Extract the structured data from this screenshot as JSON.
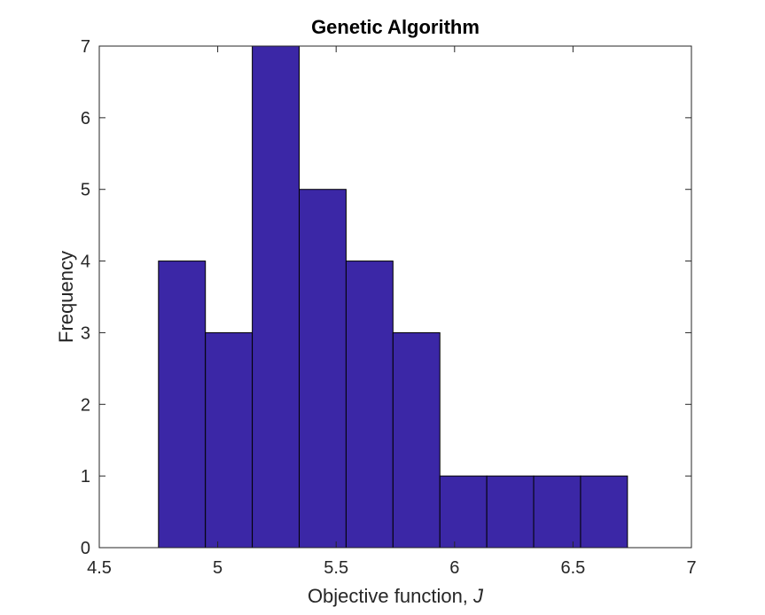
{
  "chart_data": {
    "type": "bar",
    "title": "Genetic Algorithm",
    "xlabel_text": "Objective function, ",
    "xlabel_symbol": "J",
    "ylabel": "Frequency",
    "xlim": [
      4.5,
      7
    ],
    "ylim": [
      0,
      7
    ],
    "xticks": [
      "4.5",
      "5",
      "5.5",
      "6",
      "6.5",
      "7"
    ],
    "yticks": [
      "0",
      "1",
      "2",
      "3",
      "4",
      "5",
      "6",
      "7"
    ],
    "bin_edges": [
      4.75,
      4.948,
      5.146,
      5.344,
      5.542,
      5.74,
      5.938,
      6.136,
      6.334,
      6.532,
      6.73
    ],
    "values": [
      4,
      3,
      7,
      5,
      4,
      3,
      1,
      1,
      1,
      1
    ],
    "grid": false,
    "bar_color": "#3b27a6",
    "edge_color": "#000000"
  }
}
